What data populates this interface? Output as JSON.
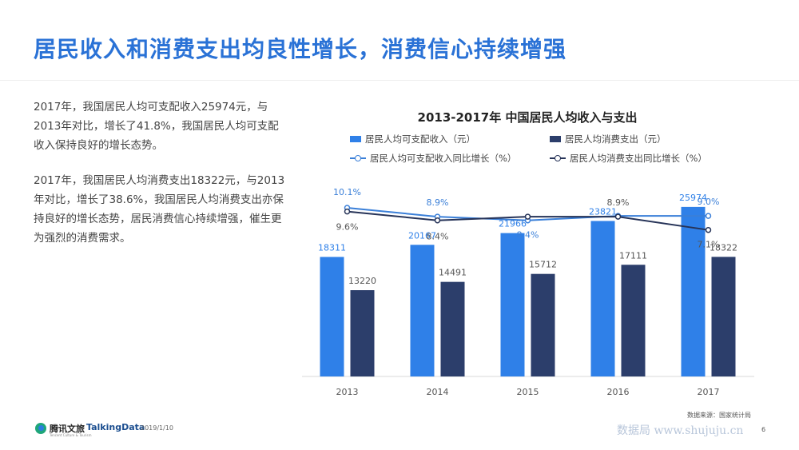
{
  "title": "居民收入和消费支出均良性增长，消费信心持续增强",
  "paragraphs": [
    "2017年，我国居民人均可支配收入25974元，与2013年对比，增长了41.8%，我国居民人均可支配收入保持良好的增长态势。",
    "2017年，我国居民人均消费支出18322元，与2013年对比，增长了38.6%，我国居民人均消费支出亦保持良好的增长态势，居民消费信心持续增强，催生更为强烈的消费需求。"
  ],
  "footer": {
    "logo_tencent": "腾讯文旅",
    "logo_tencent_sub": "Tencent Culture & Tourism",
    "logo_talkingdata": "TalkingData",
    "date": "2019/1/10",
    "source": "数据来源：国家统计局",
    "watermark": "数据局 www.shujuju.cn",
    "page": "6"
  },
  "colors": {
    "title": "#2a72d6",
    "income": "#2f80e8",
    "expense": "#2c3e6b",
    "income_line": "#3a7fd8",
    "expense_line": "#263358"
  },
  "chart_data": {
    "type": "bar",
    "title": "2013-2017年 中国居民人均收入与支出",
    "categories": [
      "2013",
      "2014",
      "2015",
      "2016",
      "2017"
    ],
    "series": [
      {
        "name": "居民人均可支配收入（元）",
        "kind": "bar",
        "values": [
          18311,
          20167,
          21966,
          23821,
          25974
        ]
      },
      {
        "name": "居民人均消费支出（元）",
        "kind": "bar",
        "values": [
          13220,
          14491,
          15712,
          17111,
          18322
        ]
      },
      {
        "name": "居民人均可支配收入同比增长（%）",
        "kind": "line",
        "values": [
          10.1,
          8.9,
          8.4,
          9.0,
          9.0
        ],
        "labels": [
          "10.1%",
          "8.9%",
          "8.4%",
          "",
          "9.0%"
        ]
      },
      {
        "name": "居民人均消费支出同比增长（%）",
        "kind": "line",
        "values": [
          9.6,
          8.4,
          8.9,
          8.9,
          7.1
        ],
        "labels": [
          "9.6%",
          "8.4%",
          "",
          "8.9%",
          "7.1%"
        ]
      }
    ],
    "legend_position": "top",
    "grid": false
  }
}
